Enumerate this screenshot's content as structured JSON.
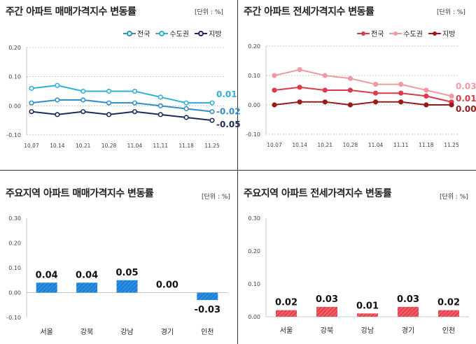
{
  "panels": {
    "top_left": {
      "title": "주간 아파트 매매가격지수 변동률",
      "unit": "[단위 : %]",
      "legend": [
        "전국",
        "수도권",
        "지방"
      ]
    },
    "top_right": {
      "title": "주간 아파트 전세가격지수 변동률",
      "unit": "[단위 : %]",
      "legend": [
        "전국",
        "수도권",
        "지방"
      ]
    },
    "bottom_left": {
      "title": "주요지역 아파트 매매가격지수 변동률",
      "unit": "[단위 : %]"
    },
    "bottom_right": {
      "title": "주요지역 아파트 전세가격지수 변동률",
      "unit": "[단위 : %]"
    }
  },
  "chart_data": [
    {
      "type": "line",
      "x": [
        "10.07",
        "10.14",
        "10.21",
        "10.28",
        "11.04",
        "11.11",
        "11.18",
        "11.25"
      ],
      "ylim": [
        -0.1,
        0.2
      ],
      "yticks": [
        "0.20",
        "0.10",
        "0.00",
        "-0.10"
      ],
      "series": [
        {
          "name": "전국",
          "color": "#2f8fc9",
          "values": [
            0.01,
            0.02,
            0.02,
            0.01,
            0.01,
            0.0,
            -0.01,
            -0.02
          ],
          "end_label": "-0.02"
        },
        {
          "name": "수도권",
          "color": "#2ab3d8",
          "values": [
            0.06,
            0.07,
            0.05,
            0.05,
            0.05,
            0.03,
            0.01,
            0.01
          ],
          "end_label": "0.01"
        },
        {
          "name": "지방",
          "color": "#1c2a5c",
          "values": [
            -0.02,
            -0.03,
            -0.02,
            -0.03,
            -0.02,
            -0.03,
            -0.04,
            -0.05
          ],
          "end_label": "-0.05"
        }
      ],
      "grid": true,
      "legend_position": "top-right"
    },
    {
      "type": "line",
      "x": [
        "10.07",
        "10.14",
        "10.21",
        "10.28",
        "11.04",
        "11.11",
        "11.18",
        "11.25"
      ],
      "ylim": [
        -0.1,
        0.2
      ],
      "yticks": [
        "0.20",
        "0.10",
        "0.00",
        "-0.10"
      ],
      "series": [
        {
          "name": "전국",
          "color": "#e03a4a",
          "values": [
            0.05,
            0.06,
            0.05,
            0.05,
            0.04,
            0.04,
            0.03,
            0.01
          ],
          "end_label": "0.01"
        },
        {
          "name": "수도권",
          "color": "#f09aa2",
          "values": [
            0.1,
            0.12,
            0.1,
            0.09,
            0.07,
            0.07,
            0.05,
            0.03
          ],
          "end_label": "0.03"
        },
        {
          "name": "지방",
          "color": "#9a1a1a",
          "values": [
            0.0,
            0.01,
            0.01,
            0.0,
            0.01,
            0.01,
            0.0,
            0.0
          ],
          "end_label": "0.00"
        }
      ],
      "grid": true,
      "legend_position": "top-right"
    },
    {
      "type": "bar",
      "categories": [
        "서울",
        "강북",
        "강남",
        "경기",
        "인천"
      ],
      "values": [
        0.04,
        0.04,
        0.05,
        0.0,
        -0.03
      ],
      "labels": [
        "0.04",
        "0.04",
        "0.05",
        "0.00",
        "-0.03"
      ],
      "ylim": [
        -0.1,
        0.3
      ],
      "yticks": [
        "0.30",
        "0.20",
        "0.10",
        "0.00",
        "-0.10"
      ],
      "color": "#1a7fd6"
    },
    {
      "type": "bar",
      "categories": [
        "서울",
        "강북",
        "강남",
        "경기",
        "인천"
      ],
      "values": [
        0.02,
        0.03,
        0.01,
        0.03,
        0.02
      ],
      "labels": [
        "0.02",
        "0.03",
        "0.01",
        "0.03",
        "0.02"
      ],
      "ylim": [
        0.0,
        0.3
      ],
      "yticks": [
        "0.30",
        "0.20",
        "0.10",
        "0.00"
      ],
      "color": "#e8434f"
    }
  ]
}
